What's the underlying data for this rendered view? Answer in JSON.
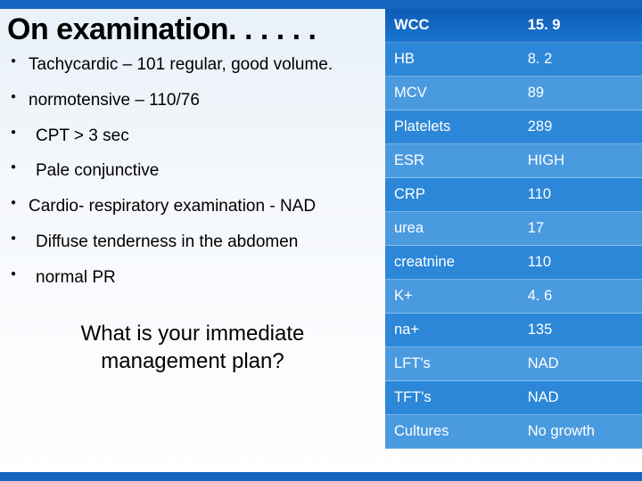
{
  "title": "On examination. . . . . .",
  "bullets": [
    {
      "text": "Tachycardic – 101 regular, good volume.",
      "indent": false
    },
    {
      "text": "normotensive – 110/76",
      "indent": false
    },
    {
      "text": "CPT > 3 sec",
      "indent": true
    },
    {
      "text": "Pale conjunctive",
      "indent": true
    },
    {
      "text": "Cardio- respiratory examination - NAD",
      "indent": false
    },
    {
      "text": "Diffuse tenderness in the abdomen",
      "indent": true
    },
    {
      "text": "normal PR",
      "indent": true
    }
  ],
  "question": "What is your immediate management plan?",
  "labs": {
    "header": {
      "name": "WCC",
      "value": "15. 9"
    },
    "rows": [
      {
        "name": "HB",
        "value": "8. 2"
      },
      {
        "name": "MCV",
        "value": "89"
      },
      {
        "name": "Platelets",
        "value": "289"
      },
      {
        "name": "ESR",
        "value": "HIGH"
      },
      {
        "name": "CRP",
        "value": "110"
      },
      {
        "name": "urea",
        "value": "17"
      },
      {
        "name": "creatnine",
        "value": "110"
      },
      {
        "name": "K+",
        "value": "4. 6"
      },
      {
        "name": "na+",
        "value": "135"
      },
      {
        "name": "LFT's",
        "value": "NAD"
      },
      {
        "name": "TFT's",
        "value": "NAD"
      },
      {
        "name": "Cultures",
        "value": "No growth"
      }
    ]
  },
  "colors": {
    "accent_bar": "#1565c0",
    "table_header_bg": "#0d5bb5",
    "table_row_odd": "#2c87d8",
    "table_row_even": "#4a9ae0",
    "slide_bg_top": "#e8f0f8",
    "slide_bg_bottom": "#ffffff"
  }
}
